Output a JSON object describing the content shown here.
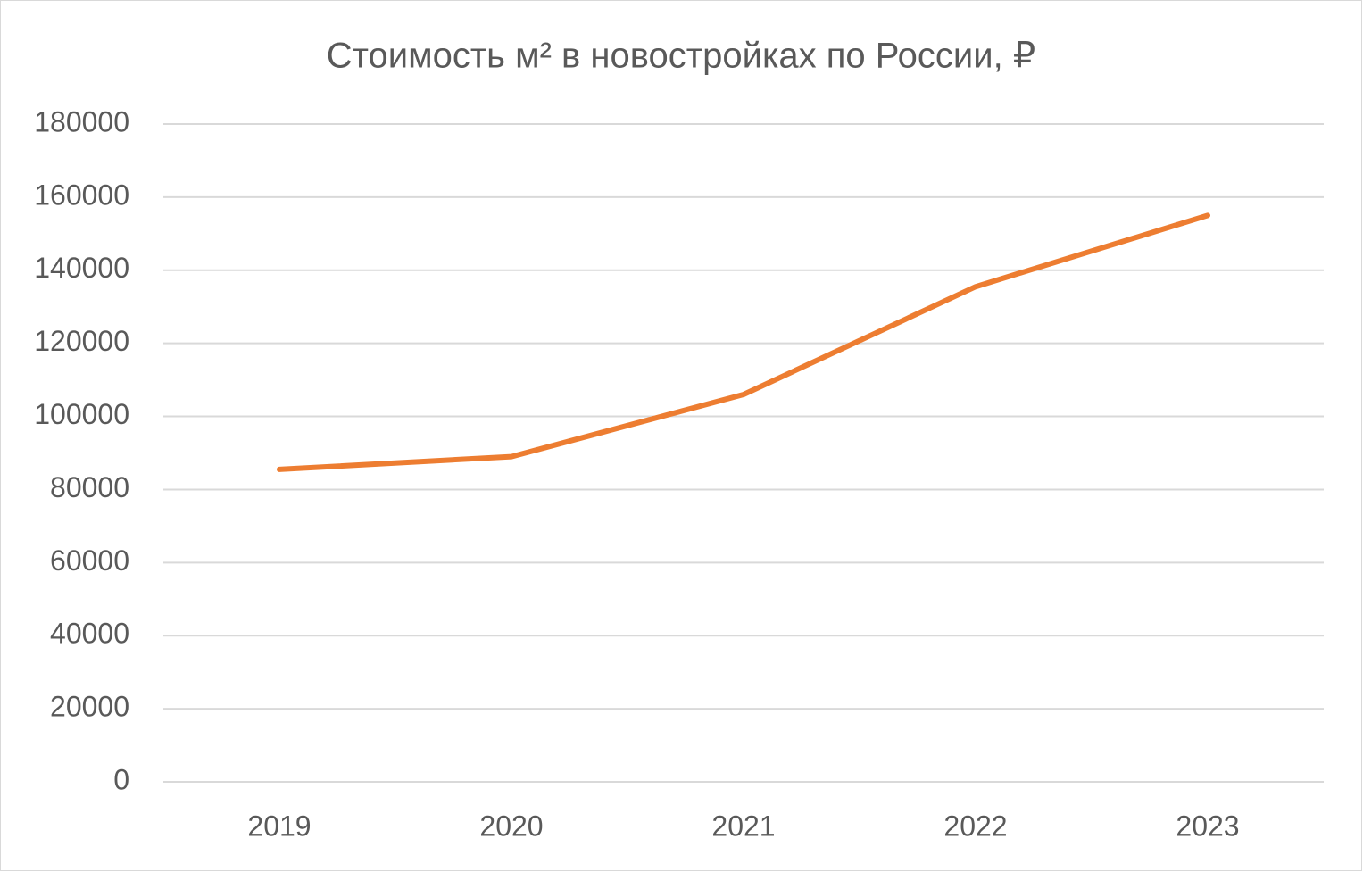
{
  "chart_data": {
    "type": "line",
    "title": "Стоимость м² в новостройках по России, ₽",
    "categories": [
      "2019",
      "2020",
      "2021",
      "2022",
      "2023"
    ],
    "series": [
      {
        "name": "Стоимость м²",
        "color": "#ed7d31",
        "values": [
          85500,
          89000,
          106000,
          135500,
          155000
        ]
      }
    ],
    "ylim": [
      0,
      180000
    ],
    "yticks": [
      0,
      20000,
      40000,
      60000,
      80000,
      100000,
      120000,
      140000,
      160000,
      180000
    ],
    "grid": true
  }
}
